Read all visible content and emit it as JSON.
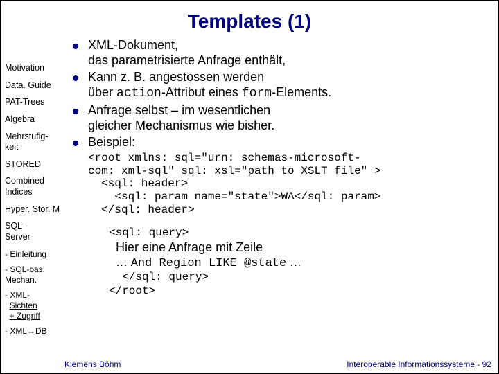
{
  "colors": {
    "title": "#000080",
    "sidebar": "#000000",
    "body": "#000000",
    "bullet": "#000080",
    "footer": "#000080"
  },
  "title": "Templates (1)",
  "sidebar": {
    "items": [
      "Motivation",
      "Data. Guide",
      "PAT-Trees",
      "Algebra",
      "Mehrstufig-\nkeit",
      "STORED",
      "Combined\nIndices",
      "Hyper. Stor. M",
      "SQL-\nServer"
    ],
    "subitems": [
      {
        "text": "- Einleitung",
        "underline": true
      },
      {
        "text": "- SQL-bas.\n  Mechan."
      },
      {
        "text": "- XML-\n  Sichten\n  + Zugriff",
        "underline": true
      },
      {
        "text": "- XML→DB"
      }
    ]
  },
  "bullets": [
    "XML-Dokument,\ndas parametrisierte Anfrage enthält,",
    "Kann z. B. angestossen werden\nüber <mono>action</mono>-Attribut eines <mono>form</mono>-Elements.",
    "Anfrage selbst – im wesentlichen\ngleicher Mechanismus wie bisher.",
    "Beispiel:"
  ],
  "code1": "<root xmlns: sql=\"urn: schemas-microsoft-\ncom: xml-sql\" sql: xsl=\"path to XSLT file\" >\n  <sql: header>\n    <sql: param name=\"state\">WA</sql: param>\n  </sql: header>",
  "code2_header": "<sql: query>",
  "plain_line": "Hier eine Anfrage mit Zeile",
  "mixed": {
    "pre": "… ",
    "mono": "And Region LIKE @state",
    "post": " …"
  },
  "code2_footer": "  </sql: query>\n</root>",
  "footer": {
    "left": "Klemens Böhm",
    "right": "Interoperable Informationssysteme - 92"
  }
}
